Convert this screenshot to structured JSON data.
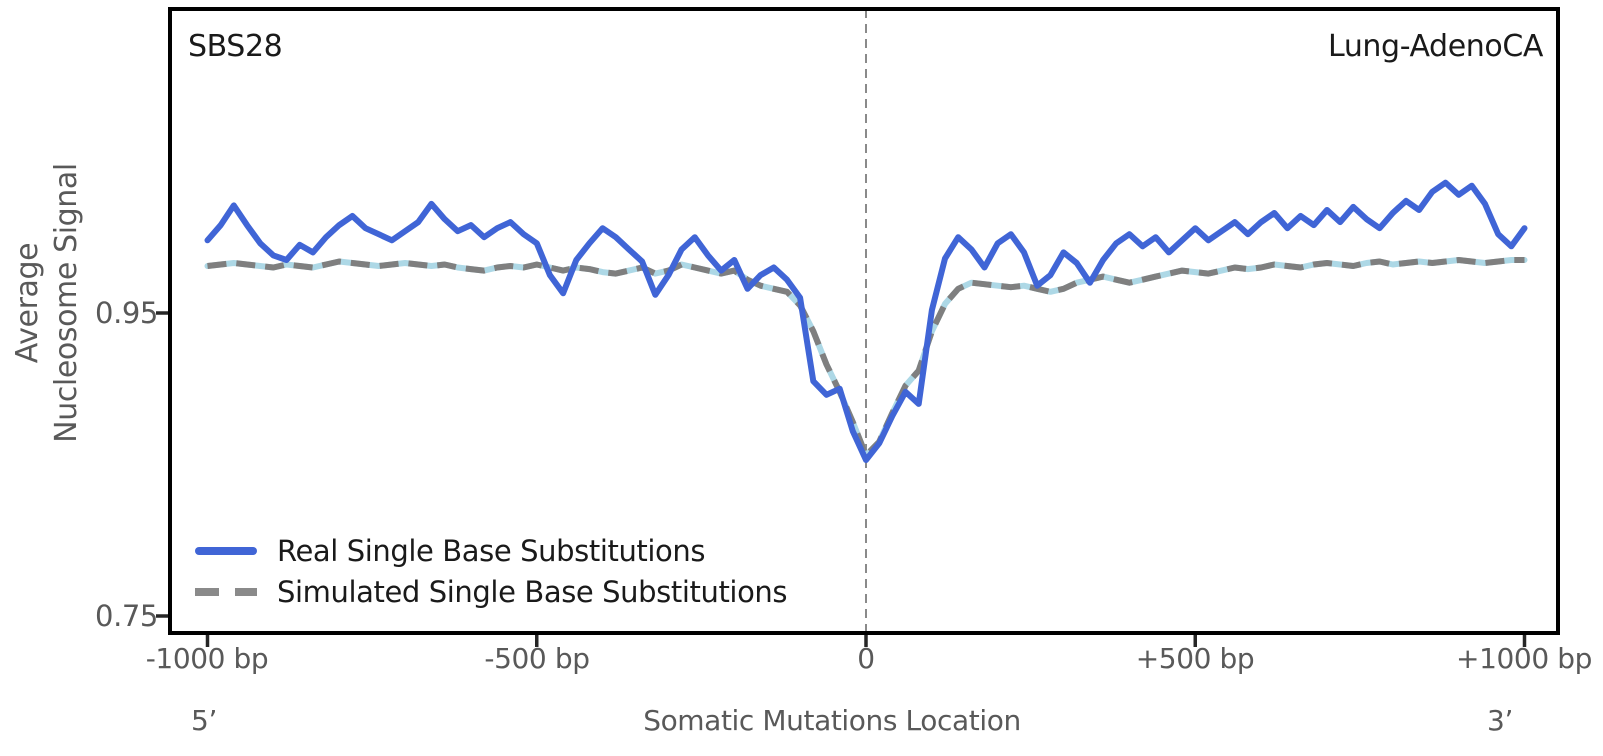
{
  "panel": {
    "top_left_label": "SBS28",
    "top_right_label": "Lung-AdenoCA"
  },
  "colors": {
    "real_line": "#4065D6",
    "simulated_line": "#7F7F7F",
    "simulated_underlay": "#ADD8E6",
    "zero_reference_line": "#8A8A8A",
    "frame": "#000000",
    "tick_text": "#595959",
    "label_text": "#1A1A1A"
  },
  "chart_data": {
    "type": "line",
    "title": "",
    "xlabel": "Somatic Mutations Location",
    "ylabel": "Average\nNucleosome Signal",
    "five_prime_label": "5’",
    "three_prime_label": "3’",
    "grid": false,
    "legend_position": "lower left",
    "x_unit": "bp",
    "x_start": -1000,
    "x_step": 20,
    "x_end": 1000,
    "x_axis": {
      "range": [
        -1050,
        1050
      ],
      "ticks": [
        {
          "value": -1000,
          "label": "-1000 bp"
        },
        {
          "value": -500,
          "label": "-500 bp"
        },
        {
          "value": 0,
          "label": "0"
        },
        {
          "value": 500,
          "label": "+500 bp"
        },
        {
          "value": 1000,
          "label": "+1000 bp"
        }
      ]
    },
    "y_axis": {
      "range": [
        0.74,
        1.15
      ],
      "ticks": [
        {
          "value": 0.95,
          "label": "0.95"
        },
        {
          "value": 0.75,
          "label": "0.75"
        }
      ]
    },
    "zero_line_x": 0,
    "series": [
      {
        "name": "Real Single Base Substitutions",
        "style": "solid",
        "color": "#4065D6",
        "values": [
          0.998,
          1.008,
          1.021,
          1.008,
          0.996,
          0.988,
          0.985,
          0.995,
          0.99,
          1.0,
          1.008,
          1.014,
          1.006,
          1.002,
          0.998,
          1.004,
          1.01,
          1.022,
          1.012,
          1.004,
          1.008,
          1.0,
          1.006,
          1.01,
          1.002,
          0.996,
          0.975,
          0.963,
          0.985,
          0.996,
          1.006,
          1.0,
          0.992,
          0.984,
          0.962,
          0.975,
          0.992,
          1.0,
          0.988,
          0.978,
          0.985,
          0.966,
          0.975,
          0.98,
          0.972,
          0.96,
          0.905,
          0.896,
          0.9,
          0.872,
          0.853,
          0.864,
          0.882,
          0.898,
          0.89,
          0.952,
          0.986,
          1.0,
          0.992,
          0.98,
          0.996,
          1.002,
          0.99,
          0.968,
          0.975,
          0.99,
          0.983,
          0.97,
          0.985,
          0.996,
          1.002,
          0.994,
          1.0,
          0.99,
          0.998,
          1.006,
          0.998,
          1.004,
          1.01,
          1.002,
          1.01,
          1.016,
          1.006,
          1.014,
          1.008,
          1.018,
          1.01,
          1.02,
          1.012,
          1.006,
          1.016,
          1.024,
          1.018,
          1.03,
          1.036,
          1.028,
          1.034,
          1.022,
          1.002,
          0.994,
          1.006
        ]
      },
      {
        "name": "Simulated Single Base Substitutions",
        "style": "dashed",
        "color": "#7F7F7F",
        "underlay_color": "#ADD8E6",
        "values": [
          0.981,
          0.982,
          0.983,
          0.982,
          0.981,
          0.98,
          0.982,
          0.981,
          0.98,
          0.982,
          0.984,
          0.983,
          0.982,
          0.981,
          0.982,
          0.983,
          0.982,
          0.981,
          0.982,
          0.98,
          0.979,
          0.978,
          0.98,
          0.981,
          0.98,
          0.982,
          0.98,
          0.978,
          0.98,
          0.979,
          0.977,
          0.976,
          0.978,
          0.98,
          0.976,
          0.978,
          0.982,
          0.98,
          0.978,
          0.976,
          0.978,
          0.972,
          0.968,
          0.966,
          0.964,
          0.955,
          0.938,
          0.916,
          0.898,
          0.878,
          0.856,
          0.865,
          0.884,
          0.902,
          0.912,
          0.938,
          0.956,
          0.966,
          0.97,
          0.969,
          0.968,
          0.967,
          0.968,
          0.966,
          0.964,
          0.966,
          0.97,
          0.972,
          0.974,
          0.972,
          0.97,
          0.972,
          0.974,
          0.976,
          0.978,
          0.977,
          0.976,
          0.978,
          0.98,
          0.979,
          0.98,
          0.982,
          0.981,
          0.98,
          0.982,
          0.983,
          0.982,
          0.981,
          0.983,
          0.984,
          0.982,
          0.983,
          0.984,
          0.983,
          0.984,
          0.985,
          0.984,
          0.983,
          0.984,
          0.985,
          0.985
        ]
      }
    ]
  }
}
